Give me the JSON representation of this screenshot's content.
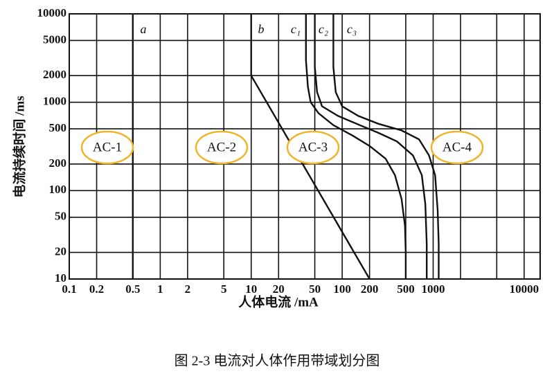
{
  "chart_data": {
    "type": "line",
    "x_label": "人体电流 /mA",
    "y_label": "电流持续时间 /ms",
    "caption": "图 2-3   电流对人体作用带域划分图",
    "xscale": "log",
    "yscale": "log",
    "grid": true,
    "xlim": [
      0.1,
      15000
    ],
    "ylim": [
      10,
      10000
    ],
    "xticks": [
      0.1,
      0.2,
      0.5,
      1,
      2,
      5,
      10,
      20,
      50,
      100,
      200,
      500,
      1000,
      10000
    ],
    "x_minor_ticks": [
      2000,
      5000
    ],
    "yticks": [
      10,
      20,
      50,
      100,
      200,
      500,
      1000,
      2000,
      5000,
      10000
    ],
    "series": [
      {
        "name": "a",
        "color": "#111111",
        "x": [
          0.5,
          0.5
        ],
        "values": [
          10000,
          10
        ]
      },
      {
        "name": "b",
        "color": "#111111",
        "x": [
          10,
          10,
          200
        ],
        "values": [
          10000,
          2000,
          10
        ]
      },
      {
        "name": "c₁",
        "color": "#111111",
        "x": [
          40,
          40,
          42,
          45,
          55,
          80,
          130,
          200,
          300,
          380,
          450,
          490,
          500,
          500
        ],
        "values": [
          10000,
          3000,
          1500,
          1000,
          750,
          550,
          420,
          320,
          230,
          150,
          80,
          40,
          20,
          10
        ]
      },
      {
        "name": "c₂",
        "color": "#111111",
        "x": [
          50,
          50,
          53,
          60,
          90,
          150,
          250,
          400,
          600,
          750,
          820,
          850,
          850
        ],
        "values": [
          10000,
          2500,
          1300,
          900,
          700,
          560,
          450,
          360,
          250,
          150,
          70,
          25,
          10
        ]
      },
      {
        "name": "c₃",
        "color": "#111111",
        "x": [
          80,
          80,
          85,
          100,
          150,
          250,
          450,
          700,
          900,
          1050,
          1120,
          1150,
          1150
        ],
        "values": [
          10000,
          2500,
          1300,
          900,
          700,
          570,
          480,
          380,
          250,
          150,
          60,
          25,
          10
        ]
      }
    ],
    "zones": [
      "AC-1",
      "AC-2",
      "AC-3",
      "AC-4"
    ],
    "zone_color": "#f0b428"
  }
}
